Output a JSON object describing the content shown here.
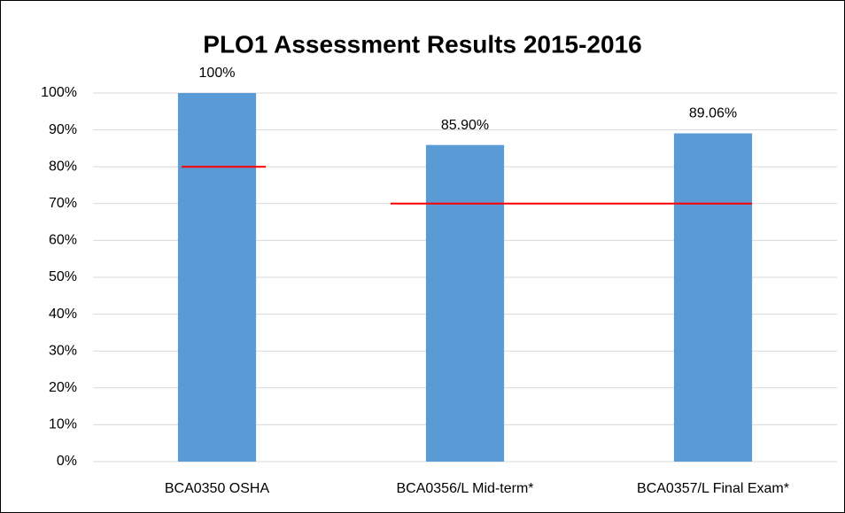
{
  "chart_data": {
    "type": "bar",
    "title": "PLO1 Assessment Results 2015-2016",
    "categories": [
      "BCA0350 OSHA",
      "BCA0356/L Mid-term*",
      "BCA0357/L Final Exam*"
    ],
    "values": [
      100,
      85.9,
      89.06
    ],
    "value_labels": [
      "100%",
      "85.90%",
      "89.06%"
    ],
    "color": "#5b9bd5",
    "targets": [
      80,
      70,
      70
    ],
    "target_color": "#ff0000",
    "ylim": [
      0,
      100
    ],
    "yticks": [
      {
        "value": 0,
        "label": "0%"
      },
      {
        "value": 10,
        "label": "10%"
      },
      {
        "value": 20,
        "label": "20%"
      },
      {
        "value": 30,
        "label": "30%"
      },
      {
        "value": 40,
        "label": "40%"
      },
      {
        "value": 50,
        "label": "50%"
      },
      {
        "value": 60,
        "label": "60%"
      },
      {
        "value": 70,
        "label": "70%"
      },
      {
        "value": 80,
        "label": "80%"
      },
      {
        "value": 90,
        "label": "90%"
      },
      {
        "value": 100,
        "label": "100%"
      }
    ],
    "grid": true
  }
}
